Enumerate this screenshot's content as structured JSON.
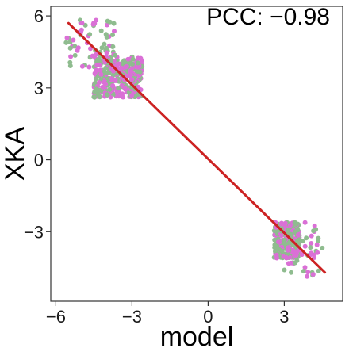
{
  "chart_data": {
    "type": "scatter",
    "xlabel": "model",
    "ylabel": "XKA",
    "annotation": "PCC: −0.98",
    "xlim": [
      -6.2,
      5.3
    ],
    "ylim": [
      -5.9,
      6.4
    ],
    "x_ticks": [
      -6,
      -3,
      0,
      3
    ],
    "x_tick_labels": [
      "−6",
      "−3",
      "0",
      "3"
    ],
    "y_ticks": [
      -3,
      0,
      3,
      6
    ],
    "y_tick_labels": [
      "−3",
      "0",
      "3",
      "6"
    ],
    "grid": false,
    "legend": "none",
    "colors": {
      "series_a": "#8fbc8f",
      "series_b": "#da70d6",
      "fit": "#cc2222"
    },
    "clusters": [
      {
        "x_range": [
          -4.5,
          -2.6
        ],
        "y_range": [
          2.6,
          4.3
        ],
        "count": 340,
        "note": "dense core"
      },
      {
        "x_range": [
          -5.6,
          -3.6
        ],
        "y_range": [
          3.8,
          5.9
        ],
        "count": 70,
        "note": "upper spread"
      },
      {
        "x_range": [
          2.6,
          3.6
        ],
        "y_range": [
          -4.1,
          -2.6
        ],
        "count": 240,
        "note": "dense core"
      },
      {
        "x_range": [
          3.0,
          4.5
        ],
        "y_range": [
          -4.9,
          -2.6
        ],
        "count": 50,
        "note": "lower spread"
      }
    ],
    "fit_line": {
      "x": [
        -5.5,
        4.6
      ],
      "y": [
        5.7,
        -4.7
      ]
    }
  }
}
